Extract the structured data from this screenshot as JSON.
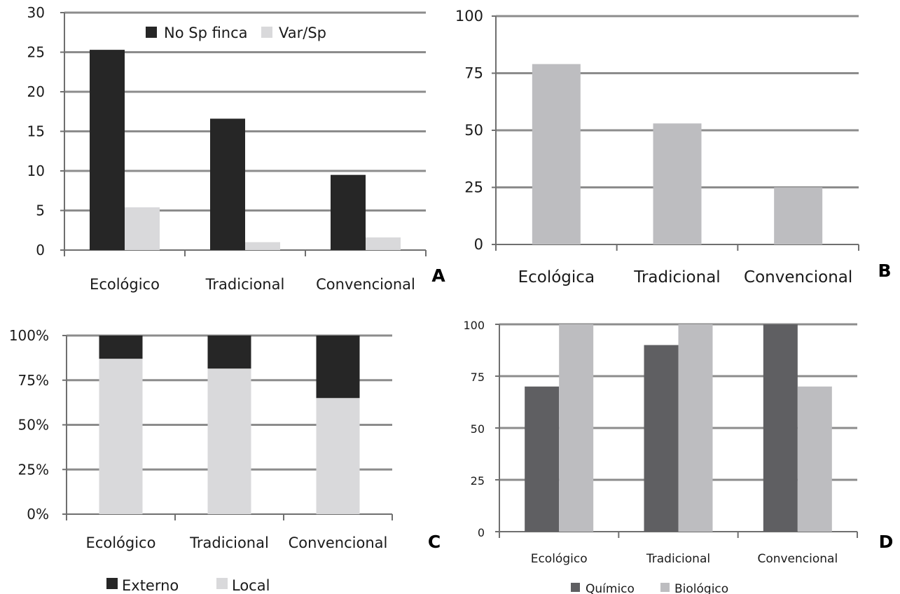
{
  "chart_data": [
    {
      "panel": "A",
      "type": "bar",
      "categories": [
        "Ecológico",
        "Tradicional",
        "Convencional"
      ],
      "series": [
        {
          "name": "No Sp finca",
          "values": [
            25.3,
            16.6,
            9.5
          ],
          "color": "#262626"
        },
        {
          "name": "Var/Sp",
          "values": [
            5.4,
            1.0,
            1.6
          ],
          "color": "#d9d9db"
        }
      ],
      "ylim": [
        0,
        30
      ],
      "yticks": [
        "0",
        "5",
        "10",
        "15",
        "20",
        "25",
        "30"
      ],
      "legend": "top-center",
      "grid": true
    },
    {
      "panel": "B",
      "type": "bar",
      "categories": [
        "Ecológica",
        "Tradicional",
        "Convencional"
      ],
      "series": [
        {
          "values": [
            79,
            53,
            25
          ],
          "color": "#bdbdc0"
        }
      ],
      "ylim": [
        0,
        100
      ],
      "yticks": [
        "0",
        "25",
        "50",
        "75",
        "100"
      ],
      "grid": true
    },
    {
      "panel": "C",
      "type": "bar",
      "stacked": true,
      "categories": [
        "Ecológico",
        "Tradicional",
        "Convencional"
      ],
      "series": [
        {
          "name": "Local",
          "values": [
            87,
            81.5,
            65
          ],
          "color": "#d9d9db"
        },
        {
          "name": "Externo",
          "values": [
            13,
            18.5,
            35
          ],
          "color": "#262626"
        }
      ],
      "ylim": [
        0,
        100
      ],
      "yticks": [
        "0%",
        "25%",
        "50%",
        "75%",
        "100%"
      ],
      "legend": "bottom",
      "legend_order": [
        "Externo",
        "Local"
      ],
      "grid": true
    },
    {
      "panel": "D",
      "type": "bar",
      "categories": [
        "Ecológico",
        "Tradicional",
        "Convencional"
      ],
      "series": [
        {
          "name": "Químico",
          "values": [
            70,
            90,
            100
          ],
          "color": "#5f5f62"
        },
        {
          "name": "Biológico",
          "values": [
            100,
            100,
            70
          ],
          "color": "#bdbdc0"
        }
      ],
      "ylim": [
        0,
        100
      ],
      "yticks": [
        "0",
        "25",
        "50",
        "75",
        "100"
      ],
      "legend": "bottom",
      "grid": true
    }
  ],
  "style": {
    "grid_color": "#8c8c8c",
    "axis_color": "#6f6f6f",
    "text_color": "#1a1a1a"
  }
}
